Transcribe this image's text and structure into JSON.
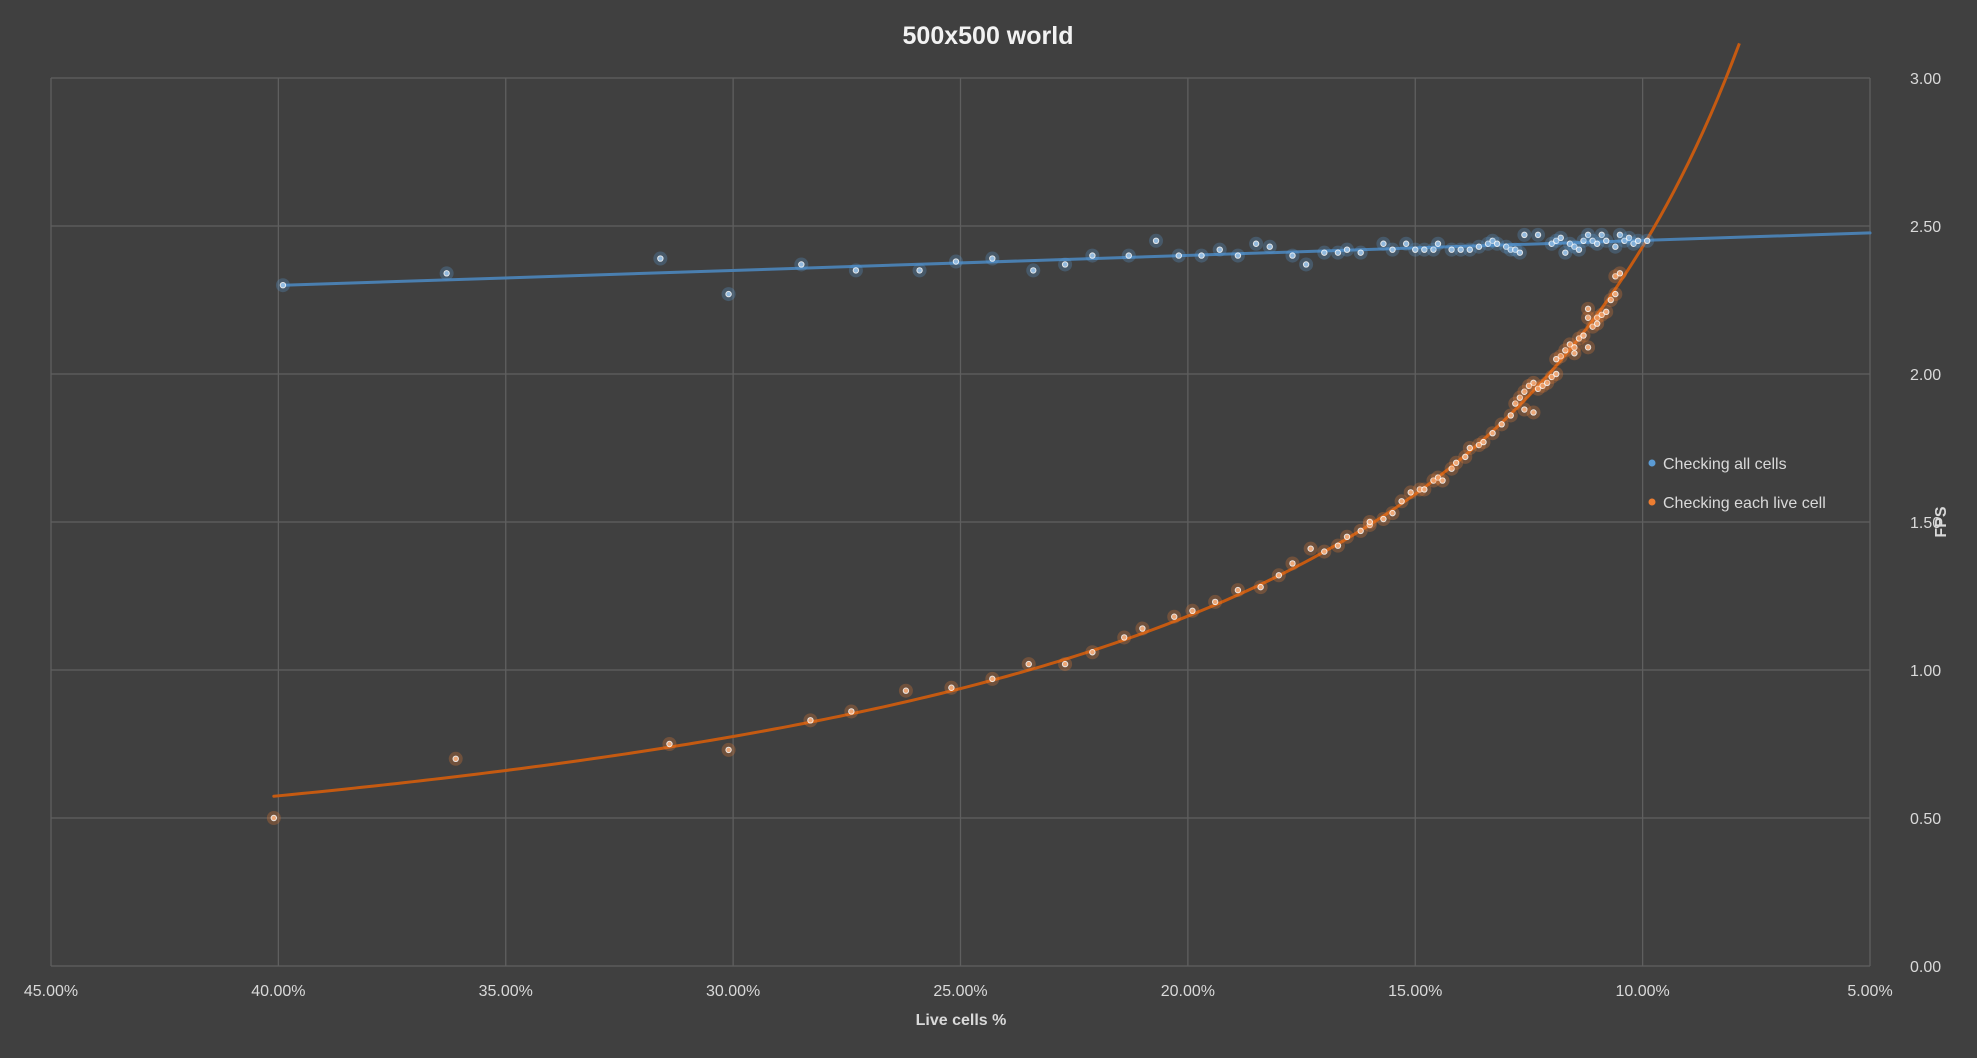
{
  "chart_data": {
    "type": "scatter",
    "title": "500x500 world",
    "xlabel": "Live cells %",
    "ylabel": "FPS",
    "xlim": [
      45,
      5
    ],
    "ylim": [
      0,
      3
    ],
    "x_reversed": true,
    "x_ticks": [
      45,
      40,
      35,
      30,
      25,
      20,
      15,
      10,
      5
    ],
    "x_tick_labels": [
      "45.00%",
      "40.00%",
      "35.00%",
      "30.00%",
      "25.00%",
      "20.00%",
      "15.00%",
      "10.00%",
      "5.00%"
    ],
    "y_ticks": [
      0,
      0.5,
      1,
      1.5,
      2,
      2.5,
      3
    ],
    "y_tick_labels": [
      "0.00",
      "0.50",
      "1.00",
      "1.50",
      "2.00",
      "2.50",
      "3.00"
    ],
    "y_axis_position": "right",
    "grid": true,
    "legend_position": "right",
    "series": [
      {
        "name": "Checking all cells",
        "color": "#5b9bd5",
        "trendline": "linear",
        "trend_color": "#4a7fb0",
        "points": [
          [
            39.9,
            2.3
          ],
          [
            36.3,
            2.34
          ],
          [
            31.6,
            2.39
          ],
          [
            30.1,
            2.27
          ],
          [
            28.5,
            2.37
          ],
          [
            27.3,
            2.35
          ],
          [
            25.9,
            2.35
          ],
          [
            25.1,
            2.38
          ],
          [
            24.3,
            2.39
          ],
          [
            23.4,
            2.35
          ],
          [
            22.7,
            2.37
          ],
          [
            22.1,
            2.4
          ],
          [
            21.3,
            2.4
          ],
          [
            20.7,
            2.45
          ],
          [
            20.2,
            2.4
          ],
          [
            19.7,
            2.4
          ],
          [
            19.3,
            2.42
          ],
          [
            18.9,
            2.4
          ],
          [
            18.5,
            2.44
          ],
          [
            18.2,
            2.43
          ],
          [
            17.7,
            2.4
          ],
          [
            17.4,
            2.37
          ],
          [
            17.0,
            2.41
          ],
          [
            16.7,
            2.41
          ],
          [
            16.5,
            2.42
          ],
          [
            16.2,
            2.41
          ],
          [
            15.7,
            2.44
          ],
          [
            15.5,
            2.42
          ],
          [
            15.2,
            2.44
          ],
          [
            15.0,
            2.42
          ],
          [
            14.8,
            2.42
          ],
          [
            14.6,
            2.42
          ],
          [
            14.5,
            2.44
          ],
          [
            14.2,
            2.42
          ],
          [
            14.0,
            2.42
          ],
          [
            13.8,
            2.42
          ],
          [
            13.6,
            2.43
          ],
          [
            13.4,
            2.44
          ],
          [
            13.3,
            2.45
          ],
          [
            13.2,
            2.44
          ],
          [
            13.0,
            2.43
          ],
          [
            12.9,
            2.42
          ],
          [
            12.8,
            2.42
          ],
          [
            12.7,
            2.41
          ],
          [
            12.6,
            2.47
          ],
          [
            12.3,
            2.47
          ],
          [
            12.0,
            2.44
          ],
          [
            11.9,
            2.45
          ],
          [
            11.8,
            2.46
          ],
          [
            11.7,
            2.41
          ],
          [
            11.6,
            2.44
          ],
          [
            11.5,
            2.43
          ],
          [
            11.4,
            2.42
          ],
          [
            11.3,
            2.45
          ],
          [
            11.2,
            2.47
          ],
          [
            11.1,
            2.45
          ],
          [
            11.0,
            2.44
          ],
          [
            10.9,
            2.47
          ],
          [
            10.8,
            2.45
          ],
          [
            10.6,
            2.43
          ],
          [
            10.5,
            2.47
          ],
          [
            10.4,
            2.45
          ],
          [
            10.3,
            2.46
          ],
          [
            10.2,
            2.44
          ],
          [
            10.1,
            2.45
          ],
          [
            9.9,
            2.45
          ]
        ]
      },
      {
        "name": "Checking each live cell",
        "color": "#ed7d31",
        "trendline": "power",
        "trend_color": "#c55a11",
        "points": [
          [
            40.1,
            0.5
          ],
          [
            36.1,
            0.7
          ],
          [
            31.4,
            0.75
          ],
          [
            30.1,
            0.73
          ],
          [
            28.3,
            0.83
          ],
          [
            27.4,
            0.86
          ],
          [
            26.2,
            0.93
          ],
          [
            25.2,
            0.94
          ],
          [
            24.3,
            0.97
          ],
          [
            23.5,
            1.02
          ],
          [
            22.7,
            1.02
          ],
          [
            22.1,
            1.06
          ],
          [
            21.4,
            1.11
          ],
          [
            21.0,
            1.14
          ],
          [
            20.3,
            1.18
          ],
          [
            19.9,
            1.2
          ],
          [
            19.4,
            1.23
          ],
          [
            18.9,
            1.27
          ],
          [
            18.4,
            1.28
          ],
          [
            18.0,
            1.32
          ],
          [
            17.7,
            1.36
          ],
          [
            17.3,
            1.41
          ],
          [
            17.0,
            1.4
          ],
          [
            16.7,
            1.42
          ],
          [
            16.5,
            1.45
          ],
          [
            16.2,
            1.47
          ],
          [
            16.0,
            1.49
          ],
          [
            16.0,
            1.5
          ],
          [
            15.7,
            1.51
          ],
          [
            15.5,
            1.53
          ],
          [
            15.3,
            1.57
          ],
          [
            15.1,
            1.6
          ],
          [
            14.9,
            1.61
          ],
          [
            14.8,
            1.61
          ],
          [
            14.6,
            1.64
          ],
          [
            14.5,
            1.65
          ],
          [
            14.4,
            1.64
          ],
          [
            14.2,
            1.68
          ],
          [
            14.1,
            1.7
          ],
          [
            13.9,
            1.72
          ],
          [
            13.8,
            1.75
          ],
          [
            13.6,
            1.76
          ],
          [
            13.5,
            1.77
          ],
          [
            13.3,
            1.8
          ],
          [
            13.1,
            1.83
          ],
          [
            12.9,
            1.86
          ],
          [
            12.8,
            1.9
          ],
          [
            12.7,
            1.92
          ],
          [
            12.6,
            1.94
          ],
          [
            12.5,
            1.96
          ],
          [
            12.4,
            1.97
          ],
          [
            12.3,
            1.95
          ],
          [
            12.2,
            1.96
          ],
          [
            12.1,
            1.97
          ],
          [
            12.0,
            1.99
          ],
          [
            11.9,
            2.0
          ],
          [
            11.8,
            2.06
          ],
          [
            11.7,
            2.08
          ],
          [
            11.6,
            2.1
          ],
          [
            11.5,
            2.09
          ],
          [
            11.4,
            2.12
          ],
          [
            11.3,
            2.13
          ],
          [
            11.2,
            2.09
          ],
          [
            11.2,
            2.19
          ],
          [
            11.1,
            2.16
          ],
          [
            11.0,
            2.19
          ],
          [
            10.9,
            2.2
          ],
          [
            10.8,
            2.21
          ],
          [
            10.7,
            2.25
          ],
          [
            10.6,
            2.27
          ],
          [
            10.6,
            2.33
          ],
          [
            10.5,
            2.34
          ],
          [
            12.6,
            1.88
          ],
          [
            12.4,
            1.87
          ],
          [
            11.9,
            2.05
          ],
          [
            11.5,
            2.07
          ],
          [
            11.2,
            2.22
          ],
          [
            11.0,
            2.17
          ]
        ]
      }
    ]
  }
}
